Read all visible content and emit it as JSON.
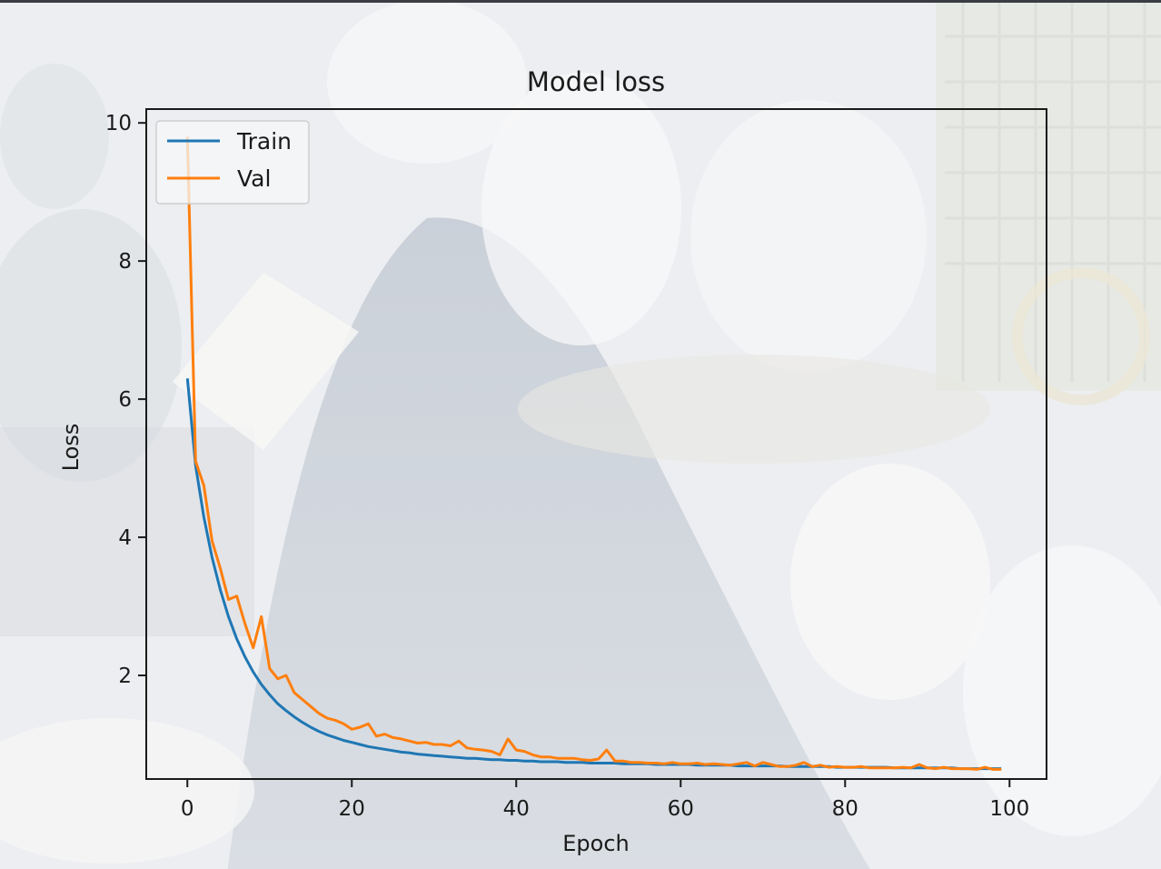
{
  "colors": {
    "train": "#1f77b4",
    "val": "#ff7f0e",
    "axis": "#1a1a1a"
  },
  "chart_data": {
    "type": "line",
    "title": "Model loss",
    "xlabel": "Epoch",
    "ylabel": "Loss",
    "xlim": [
      -5,
      104.5
    ],
    "ylim": [
      0.5,
      10.2
    ],
    "xticks": [
      0,
      20,
      40,
      60,
      80,
      100
    ],
    "yticks": [
      2,
      4,
      6,
      8,
      10
    ],
    "grid": false,
    "legend_position": "upper-left",
    "series": [
      {
        "name": "Train",
        "color": "#1f77b4",
        "x": [
          0,
          1,
          2,
          3,
          4,
          5,
          6,
          7,
          8,
          9,
          10,
          11,
          12,
          13,
          14,
          15,
          16,
          17,
          18,
          19,
          20,
          21,
          22,
          23,
          24,
          25,
          26,
          27,
          28,
          29,
          30,
          31,
          32,
          33,
          34,
          35,
          36,
          37,
          38,
          39,
          40,
          41,
          42,
          43,
          44,
          45,
          46,
          47,
          48,
          49,
          50,
          51,
          52,
          53,
          54,
          55,
          56,
          57,
          58,
          59,
          60,
          61,
          62,
          63,
          64,
          65,
          66,
          67,
          68,
          69,
          70,
          71,
          72,
          73,
          74,
          75,
          76,
          77,
          78,
          79,
          80,
          81,
          82,
          83,
          84,
          85,
          86,
          87,
          88,
          89,
          90,
          91,
          92,
          93,
          94,
          95,
          96,
          97,
          98,
          99
        ],
        "values": [
          6.3,
          5.04,
          4.29,
          3.71,
          3.24,
          2.85,
          2.53,
          2.27,
          2.05,
          1.87,
          1.72,
          1.59,
          1.49,
          1.4,
          1.32,
          1.25,
          1.19,
          1.14,
          1.1,
          1.06,
          1.03,
          1,
          0.97,
          0.95,
          0.93,
          0.91,
          0.89,
          0.88,
          0.86,
          0.85,
          0.84,
          0.83,
          0.82,
          0.81,
          0.8,
          0.8,
          0.79,
          0.78,
          0.78,
          0.77,
          0.77,
          0.76,
          0.76,
          0.75,
          0.75,
          0.75,
          0.74,
          0.74,
          0.74,
          0.73,
          0.73,
          0.73,
          0.73,
          0.72,
          0.72,
          0.72,
          0.72,
          0.71,
          0.71,
          0.71,
          0.71,
          0.71,
          0.7,
          0.7,
          0.7,
          0.7,
          0.7,
          0.69,
          0.69,
          0.69,
          0.69,
          0.69,
          0.69,
          0.68,
          0.68,
          0.68,
          0.68,
          0.68,
          0.68,
          0.67,
          0.67,
          0.67,
          0.67,
          0.67,
          0.67,
          0.67,
          0.66,
          0.66,
          0.66,
          0.66,
          0.66,
          0.66,
          0.66,
          0.66,
          0.65,
          0.65,
          0.65,
          0.65,
          0.65,
          0.65
        ]
      },
      {
        "name": "Val",
        "color": "#ff7f0e",
        "x": [
          0,
          1,
          2,
          3,
          4,
          5,
          6,
          7,
          8,
          9,
          10,
          11,
          12,
          13,
          14,
          15,
          16,
          17,
          18,
          19,
          20,
          21,
          22,
          23,
          24,
          25,
          26,
          27,
          28,
          29,
          30,
          31,
          32,
          33,
          34,
          35,
          36,
          37,
          38,
          39,
          40,
          41,
          42,
          43,
          44,
          45,
          46,
          47,
          48,
          49,
          50,
          51,
          52,
          53,
          54,
          55,
          56,
          57,
          58,
          59,
          60,
          61,
          62,
          63,
          64,
          65,
          66,
          67,
          68,
          69,
          70,
          71,
          72,
          73,
          74,
          75,
          76,
          77,
          78,
          79,
          80,
          81,
          82,
          83,
          84,
          85,
          86,
          87,
          88,
          89,
          90,
          91,
          92,
          93,
          94,
          95,
          96,
          97,
          98,
          99
        ],
        "values": [
          9.8,
          5.1,
          4.75,
          3.95,
          3.55,
          3.1,
          3.15,
          2.75,
          2.4,
          2.85,
          2.1,
          1.95,
          2.0,
          1.75,
          1.65,
          1.55,
          1.45,
          1.38,
          1.35,
          1.3,
          1.22,
          1.25,
          1.3,
          1.12,
          1.15,
          1.1,
          1.08,
          1.05,
          1.02,
          1.03,
          1.0,
          1.0,
          0.98,
          1.05,
          0.95,
          0.93,
          0.92,
          0.9,
          0.85,
          1.08,
          0.92,
          0.9,
          0.85,
          0.82,
          0.82,
          0.8,
          0.8,
          0.8,
          0.78,
          0.77,
          0.79,
          0.92,
          0.76,
          0.76,
          0.74,
          0.74,
          0.73,
          0.73,
          0.72,
          0.74,
          0.72,
          0.72,
          0.73,
          0.71,
          0.72,
          0.71,
          0.7,
          0.72,
          0.74,
          0.69,
          0.74,
          0.71,
          0.68,
          0.68,
          0.7,
          0.74,
          0.68,
          0.7,
          0.67,
          0.68,
          0.67,
          0.67,
          0.68,
          0.66,
          0.66,
          0.66,
          0.66,
          0.67,
          0.66,
          0.71,
          0.66,
          0.65,
          0.67,
          0.65,
          0.65,
          0.65,
          0.64,
          0.67,
          0.64,
          0.64
        ]
      }
    ]
  }
}
